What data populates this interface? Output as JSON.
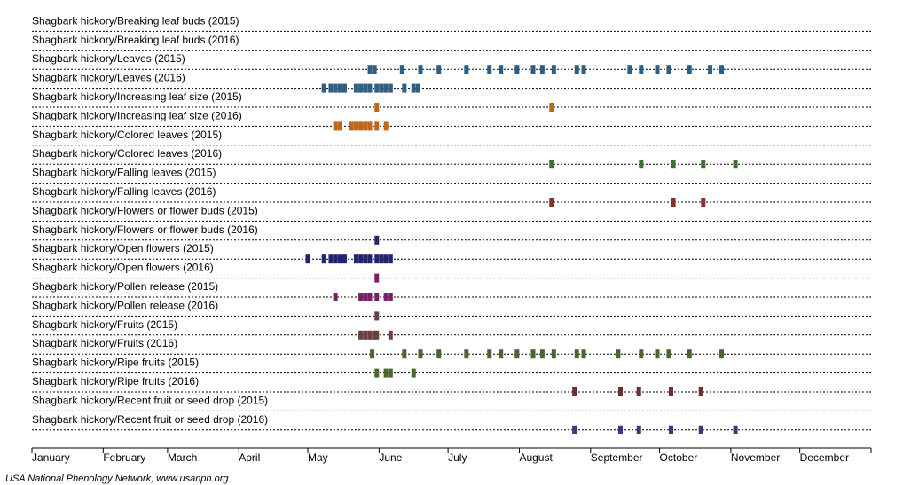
{
  "chart_data": {
    "type": "timeline",
    "x_axis": {
      "range_days": [
        1,
        366
      ],
      "months": [
        "January",
        "February",
        "March",
        "April",
        "May",
        "June",
        "July",
        "August",
        "September",
        "October",
        "November",
        "December"
      ]
    },
    "grid": "dotted horizontal lines between rows",
    "source": "USA National Phenology Network, www.usanpn.org",
    "rows": [
      {
        "label": "Shagbark hickory/Breaking leaf buds (2015)",
        "color": "#2e5f82",
        "days": []
      },
      {
        "label": "Shagbark hickory/Breaking leaf buds (2016)",
        "color": "#2e5f82",
        "days": []
      },
      {
        "label": "Shagbark hickory/Leaves (2015)",
        "color": "#2e5f82",
        "days": [
          148,
          150,
          162,
          170,
          178,
          190,
          200,
          205,
          212,
          219,
          223,
          228,
          238,
          241,
          261,
          266,
          273,
          278,
          287,
          296,
          301
        ]
      },
      {
        "label": "Shagbark hickory/Leaves (2016)",
        "color": "#2e5f82",
        "days": [
          128,
          131,
          133,
          135,
          137,
          142,
          144,
          146,
          148,
          151,
          153,
          155,
          157,
          163,
          167,
          169
        ]
      },
      {
        "label": "Shagbark hickory/Increasing leaf size (2015)",
        "color": "#c0661a",
        "days": [
          151,
          227
        ]
      },
      {
        "label": "Shagbark hickory/Increasing leaf size (2016)",
        "color": "#c0661a",
        "days": [
          133,
          135,
          140,
          142,
          144,
          146,
          148,
          151,
          155
        ]
      },
      {
        "label": "Shagbark hickory/Colored leaves (2015)",
        "color": "#3d6e34",
        "days": []
      },
      {
        "label": "Shagbark hickory/Colored leaves (2016)",
        "color": "#3d6e34",
        "days": [
          227,
          266,
          280,
          293,
          307
        ]
      },
      {
        "label": "Shagbark hickory/Falling leaves (2015)",
        "color": "#8b2f2f",
        "days": []
      },
      {
        "label": "Shagbark hickory/Falling leaves (2016)",
        "color": "#8b2f2f",
        "days": [
          227,
          280,
          293
        ]
      },
      {
        "label": "Shagbark hickory/Flowers or flower buds (2015)",
        "color": "#23236e",
        "days": []
      },
      {
        "label": "Shagbark hickory/Flowers or flower buds (2016)",
        "color": "#23236e",
        "days": [
          151
        ]
      },
      {
        "label": "Shagbark hickory/Open flowers (2015)",
        "color": "#23236e",
        "days": [
          121,
          128,
          131,
          133,
          135,
          137,
          142,
          144,
          146,
          148,
          151,
          153,
          155,
          157
        ]
      },
      {
        "label": "Shagbark hickory/Open flowers (2016)",
        "color": "#7a1f6a",
        "days": [
          151
        ]
      },
      {
        "label": "Shagbark hickory/Pollen release (2015)",
        "color": "#7a1f6a",
        "days": [
          133,
          144,
          146,
          148,
          151,
          155,
          157
        ]
      },
      {
        "label": "Shagbark hickory/Pollen release (2016)",
        "color": "#6b4040",
        "days": [
          151
        ]
      },
      {
        "label": "Shagbark hickory/Fruits (2015)",
        "color": "#6b4040",
        "days": [
          144,
          146,
          148,
          150,
          151,
          157
        ]
      },
      {
        "label": "Shagbark hickory/Fruits (2016)",
        "color": "#4a6630",
        "days": [
          149,
          163,
          170,
          178,
          190,
          200,
          205,
          212,
          219,
          223,
          228,
          238,
          241,
          256,
          266,
          273,
          278,
          287,
          301
        ]
      },
      {
        "label": "Shagbark hickory/Ripe fruits (2015)",
        "color": "#4a6630",
        "days": [
          151,
          155,
          157,
          167
        ]
      },
      {
        "label": "Shagbark hickory/Ripe fruits (2016)",
        "color": "#6b3030",
        "days": [
          237,
          257,
          265,
          279,
          292
        ]
      },
      {
        "label": "Shagbark hickory/Recent fruit or seed drop (2015)",
        "color": "#3a3a7a",
        "days": []
      },
      {
        "label": "Shagbark hickory/Recent fruit or seed drop (2016)",
        "color": "#3a3a7a",
        "days": [
          237,
          257,
          265,
          279,
          292,
          307
        ]
      }
    ]
  }
}
